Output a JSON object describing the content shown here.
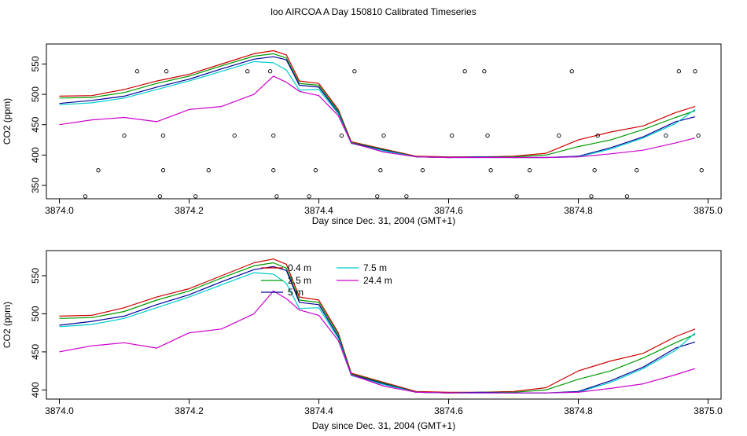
{
  "title": "loo AIRCOA A  Day 150810  Calibrated Timeseries",
  "colors": {
    "0.4 m": "#cc0000",
    "2.5 m": "#009900",
    "5 m": "#000099",
    "7.5 m": "#00cccc",
    "24.4 m": "#cc00cc",
    "axis": "#000000"
  },
  "chart_data": [
    {
      "type": "line",
      "xlabel": "Day since Dec. 31, 2004 (GMT+1)",
      "ylabel": "CO2 (ppm)",
      "xlim": [
        3873.98,
        3875.02
      ],
      "ylim": [
        328,
        583
      ],
      "x_ticks": [
        "3874.0",
        "3874.2",
        "3874.4",
        "3874.6",
        "3874.8",
        "3875.0"
      ],
      "y_ticks": [
        "350",
        "400",
        "450",
        "500",
        "550"
      ],
      "x_tick_values": [
        3874.0,
        3874.2,
        3874.4,
        3874.6,
        3874.8,
        3875.0
      ],
      "y_tick_values": [
        350,
        400,
        450,
        500,
        550
      ],
      "legend": null,
      "series": [
        {
          "name": "0.4 m",
          "x": [
            3874.0,
            3874.05,
            3874.1,
            3874.15,
            3874.2,
            3874.25,
            3874.3,
            3874.33,
            3874.35,
            3874.37,
            3874.4,
            3874.43,
            3874.45,
            3874.5,
            3874.55,
            3874.6,
            3874.65,
            3874.7,
            3874.75,
            3874.8,
            3874.85,
            3874.9,
            3874.95,
            3874.98
          ],
          "y": [
            497,
            498,
            508,
            522,
            533,
            550,
            567,
            572,
            565,
            522,
            518,
            475,
            422,
            410,
            398,
            397,
            397,
            398,
            403,
            425,
            438,
            448,
            470,
            480
          ]
        },
        {
          "name": "2.5 m",
          "x": [
            3874.0,
            3874.05,
            3874.1,
            3874.15,
            3874.2,
            3874.25,
            3874.3,
            3874.33,
            3874.35,
            3874.37,
            3874.4,
            3874.43,
            3874.45,
            3874.5,
            3874.55,
            3874.6,
            3874.65,
            3874.7,
            3874.75,
            3874.8,
            3874.85,
            3874.9,
            3874.95,
            3874.98
          ],
          "y": [
            494,
            495,
            503,
            518,
            530,
            547,
            563,
            567,
            560,
            518,
            515,
            473,
            421,
            409,
            397,
            396,
            397,
            397,
            400,
            414,
            425,
            442,
            462,
            473
          ]
        },
        {
          "name": "5 m",
          "x": [
            3874.0,
            3874.05,
            3874.1,
            3874.15,
            3874.2,
            3874.25,
            3874.3,
            3874.33,
            3874.35,
            3874.37,
            3874.4,
            3874.43,
            3874.45,
            3874.5,
            3874.55,
            3874.6,
            3874.65,
            3874.7,
            3874.75,
            3874.8,
            3874.85,
            3874.9,
            3874.95,
            3874.98
          ],
          "y": [
            485,
            490,
            497,
            512,
            525,
            542,
            558,
            562,
            557,
            515,
            512,
            470,
            420,
            408,
            397,
            396,
            397,
            396,
            396,
            398,
            412,
            430,
            455,
            463
          ]
        },
        {
          "name": "7.5 m",
          "x": [
            3874.0,
            3874.05,
            3874.1,
            3874.15,
            3874.2,
            3874.25,
            3874.3,
            3874.33,
            3874.35,
            3874.37,
            3874.4,
            3874.43,
            3874.45,
            3874.5,
            3874.55,
            3874.6,
            3874.65,
            3874.7,
            3874.75,
            3874.8,
            3874.85,
            3874.9,
            3874.95,
            3874.98
          ],
          "y": [
            483,
            486,
            494,
            508,
            522,
            538,
            554,
            552,
            540,
            507,
            508,
            468,
            419,
            407,
            397,
            396,
            396,
            396,
            396,
            397,
            410,
            428,
            452,
            475
          ]
        },
        {
          "name": "24.4 m",
          "x": [
            3874.0,
            3874.05,
            3874.1,
            3874.15,
            3874.2,
            3874.25,
            3874.3,
            3874.33,
            3874.35,
            3874.37,
            3874.4,
            3874.43,
            3874.45,
            3874.5,
            3874.55,
            3874.6,
            3874.65,
            3874.7,
            3874.75,
            3874.8,
            3874.85,
            3874.9,
            3874.95,
            3874.98
          ],
          "y": [
            450,
            458,
            462,
            455,
            475,
            480,
            500,
            530,
            520,
            505,
            498,
            465,
            420,
            405,
            397,
            396,
            396,
            396,
            396,
            397,
            402,
            408,
            420,
            428
          ]
        }
      ],
      "markers": {
        "type": "scatter",
        "x": [
          3874.04,
          3874.06,
          3874.1,
          3874.12,
          3874.155,
          3874.16,
          3874.16,
          3874.165,
          3874.21,
          3874.23,
          3874.27,
          3874.29,
          3874.325,
          3874.33,
          3874.33,
          3874.335,
          3874.385,
          3874.395,
          3874.435,
          3874.455,
          3874.49,
          3874.495,
          3874.5,
          3874.535,
          3874.56,
          3874.605,
          3874.625,
          3874.655,
          3874.66,
          3874.665,
          3874.705,
          3874.725,
          3874.77,
          3874.79,
          3874.82,
          3874.825,
          3874.83,
          3874.875,
          3874.89,
          3874.935,
          3874.955,
          3874.98,
          3874.985,
          3874.99
        ],
        "y": [
          332,
          375,
          432,
          538,
          332,
          375,
          432,
          538,
          332,
          375,
          432,
          538,
          538,
          432,
          375,
          332,
          332,
          375,
          432,
          538,
          332,
          375,
          432,
          332,
          375,
          432,
          538,
          538,
          432,
          375,
          332,
          375,
          432,
          538,
          332,
          375,
          432,
          332,
          375,
          432,
          538,
          538,
          432,
          375
        ]
      }
    },
    {
      "type": "line",
      "xlabel": "Day since Dec. 31, 2004 (GMT+1)",
      "ylabel": "CO2 (ppm)",
      "xlim": [
        3873.98,
        3875.02
      ],
      "ylim": [
        388,
        583
      ],
      "x_ticks": [
        "3874.0",
        "3874.2",
        "3874.4",
        "3874.6",
        "3874.8",
        "3875.0"
      ],
      "y_ticks": [
        "400",
        "450",
        "500",
        "550"
      ],
      "x_tick_values": [
        3874.0,
        3874.2,
        3874.4,
        3874.6,
        3874.8,
        3875.0
      ],
      "y_tick_values": [
        400,
        450,
        500,
        550
      ],
      "legend": {
        "placement": "top-center",
        "entries": [
          "0.4 m",
          "2.5 m",
          "5 m",
          "7.5 m",
          "24.4 m"
        ]
      },
      "series": [
        {
          "name": "0.4 m",
          "x": [
            3874.0,
            3874.05,
            3874.1,
            3874.15,
            3874.2,
            3874.25,
            3874.3,
            3874.33,
            3874.35,
            3874.37,
            3874.4,
            3874.43,
            3874.45,
            3874.5,
            3874.55,
            3874.6,
            3874.65,
            3874.7,
            3874.75,
            3874.8,
            3874.85,
            3874.9,
            3874.95,
            3874.98
          ],
          "y": [
            497,
            498,
            508,
            522,
            533,
            550,
            567,
            572,
            565,
            522,
            518,
            475,
            422,
            410,
            398,
            397,
            397,
            398,
            403,
            425,
            438,
            448,
            470,
            480
          ]
        },
        {
          "name": "2.5 m",
          "x": [
            3874.0,
            3874.05,
            3874.1,
            3874.15,
            3874.2,
            3874.25,
            3874.3,
            3874.33,
            3874.35,
            3874.37,
            3874.4,
            3874.43,
            3874.45,
            3874.5,
            3874.55,
            3874.6,
            3874.65,
            3874.7,
            3874.75,
            3874.8,
            3874.85,
            3874.9,
            3874.95,
            3874.98
          ],
          "y": [
            494,
            495,
            503,
            518,
            530,
            547,
            563,
            567,
            560,
            518,
            515,
            473,
            421,
            409,
            397,
            396,
            397,
            397,
            400,
            414,
            425,
            442,
            462,
            473
          ]
        },
        {
          "name": "5 m",
          "x": [
            3874.0,
            3874.05,
            3874.1,
            3874.15,
            3874.2,
            3874.25,
            3874.3,
            3874.33,
            3874.35,
            3874.37,
            3874.4,
            3874.43,
            3874.45,
            3874.5,
            3874.55,
            3874.6,
            3874.65,
            3874.7,
            3874.75,
            3874.8,
            3874.85,
            3874.9,
            3874.95,
            3874.98
          ],
          "y": [
            485,
            490,
            497,
            512,
            525,
            542,
            558,
            562,
            557,
            515,
            512,
            470,
            420,
            408,
            397,
            396,
            397,
            396,
            396,
            398,
            412,
            430,
            455,
            463
          ]
        },
        {
          "name": "7.5 m",
          "x": [
            3874.0,
            3874.05,
            3874.1,
            3874.15,
            3874.2,
            3874.25,
            3874.3,
            3874.33,
            3874.35,
            3874.37,
            3874.4,
            3874.43,
            3874.45,
            3874.5,
            3874.55,
            3874.6,
            3874.65,
            3874.7,
            3874.75,
            3874.8,
            3874.85,
            3874.9,
            3874.95,
            3874.98
          ],
          "y": [
            483,
            486,
            494,
            508,
            522,
            538,
            554,
            552,
            540,
            507,
            508,
            468,
            419,
            407,
            397,
            396,
            396,
            396,
            396,
            397,
            410,
            428,
            452,
            475
          ]
        },
        {
          "name": "24.4 m",
          "x": [
            3874.0,
            3874.05,
            3874.1,
            3874.15,
            3874.2,
            3874.25,
            3874.3,
            3874.33,
            3874.35,
            3874.37,
            3874.4,
            3874.43,
            3874.45,
            3874.5,
            3874.55,
            3874.6,
            3874.65,
            3874.7,
            3874.75,
            3874.8,
            3874.85,
            3874.9,
            3874.95,
            3874.98
          ],
          "y": [
            450,
            458,
            462,
            455,
            475,
            480,
            500,
            530,
            520,
            505,
            498,
            465,
            420,
            405,
            397,
            396,
            396,
            396,
            396,
            397,
            402,
            408,
            420,
            428
          ]
        }
      ]
    }
  ]
}
